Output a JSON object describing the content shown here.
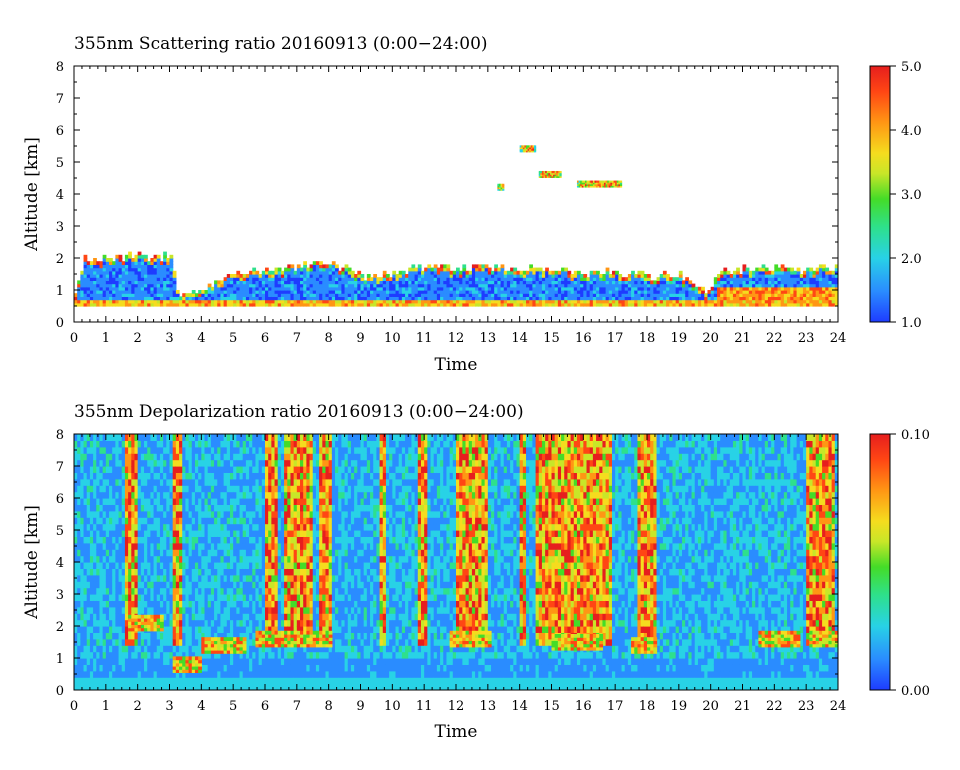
{
  "chart_data": [
    {
      "type": "heatmap",
      "title": "355nm Scattering ratio  20160913 (0:00−24:00)",
      "xlabel": "Time",
      "ylabel": "Altitude [km]",
      "xlim": [
        0,
        24
      ],
      "ylim": [
        0,
        8
      ],
      "xticks": [
        "0",
        "1",
        "2",
        "3",
        "4",
        "5",
        "6",
        "7",
        "8",
        "9",
        "10",
        "11",
        "12",
        "13",
        "14",
        "15",
        "16",
        "17",
        "18",
        "19",
        "20",
        "21",
        "22",
        "23",
        "24"
      ],
      "yticks": [
        "0",
        "1",
        "2",
        "3",
        "4",
        "5",
        "6",
        "7",
        "8"
      ],
      "colorbar": {
        "min": 1.0,
        "max": 5.0,
        "labels": [
          "1.0",
          "2.0",
          "3.0",
          "4.0",
          "5.0"
        ]
      },
      "colormap": [
        "#1e3cff",
        "#2a8cff",
        "#28d2e6",
        "#2ee08c",
        "#44dc28",
        "#c8e628",
        "#f5dc1e",
        "#ff9614",
        "#ff4614",
        "#e61e1e"
      ],
      "boundary_layer_top_km": [
        [
          0.0,
          0.8
        ],
        [
          0.3,
          1.9
        ],
        [
          0.6,
          1.9
        ],
        [
          1.5,
          2.0
        ],
        [
          3.0,
          2.0
        ],
        [
          3.2,
          0.9
        ],
        [
          4.0,
          0.9
        ],
        [
          4.5,
          1.3
        ],
        [
          5.0,
          1.5
        ],
        [
          6.0,
          1.6
        ],
        [
          7.0,
          1.7
        ],
        [
          8.0,
          1.8
        ],
        [
          8.3,
          1.7
        ],
        [
          9.0,
          1.4
        ],
        [
          10.0,
          1.5
        ],
        [
          11.0,
          1.7
        ],
        [
          12.0,
          1.6
        ],
        [
          13.0,
          1.7
        ],
        [
          14.0,
          1.6
        ],
        [
          15.0,
          1.6
        ],
        [
          16.0,
          1.5
        ],
        [
          17.0,
          1.5
        ],
        [
          18.0,
          1.4
        ],
        [
          19.0,
          1.4
        ],
        [
          19.8,
          0.9
        ],
        [
          20.2,
          1.5
        ],
        [
          21.0,
          1.6
        ],
        [
          22.0,
          1.7
        ],
        [
          23.0,
          1.6
        ],
        [
          24.0,
          1.7
        ]
      ],
      "clouds_km": [
        {
          "time_start": 14.0,
          "time_end": 14.5,
          "altitude": 5.4
        },
        {
          "time_start": 14.6,
          "time_end": 15.3,
          "altitude": 4.6
        },
        {
          "time_start": 15.8,
          "time_end": 17.2,
          "altitude": 4.3
        },
        {
          "time_start": 13.3,
          "time_end": 13.5,
          "altitude": 4.2
        }
      ]
    },
    {
      "type": "heatmap",
      "title": "355nm Depolarization ratio  20160913 (0:00−24:00)",
      "xlabel": "Time",
      "ylabel": "Altitude [km]",
      "xlim": [
        0,
        24
      ],
      "ylim": [
        0,
        8
      ],
      "xticks": [
        "0",
        "1",
        "2",
        "3",
        "4",
        "5",
        "6",
        "7",
        "8",
        "9",
        "10",
        "11",
        "12",
        "13",
        "14",
        "15",
        "16",
        "17",
        "18",
        "19",
        "20",
        "21",
        "22",
        "23",
        "24"
      ],
      "yticks": [
        "0",
        "1",
        "2",
        "3",
        "4",
        "5",
        "6",
        "7",
        "8"
      ],
      "colorbar": {
        "min": 0.0,
        "max": 0.1,
        "labels": [
          "0.00",
          "0.10"
        ]
      },
      "colormap": [
        "#1e3cff",
        "#2a8cff",
        "#28d2e6",
        "#2ee08c",
        "#44dc28",
        "#c8e628",
        "#f5dc1e",
        "#ff9614",
        "#ff4614",
        "#e61e1e"
      ],
      "high_depol_columns_hours": [
        [
          1.6,
          2.0
        ],
        [
          3.1,
          3.4
        ],
        [
          5.9,
          6.3
        ],
        [
          6.5,
          7.4
        ],
        [
          7.6,
          8.0
        ],
        [
          9.5,
          9.7
        ],
        [
          10.7,
          11.0
        ],
        [
          11.9,
          12.9
        ],
        [
          13.9,
          14.1
        ],
        [
          14.4,
          16.8
        ],
        [
          17.6,
          18.2
        ],
        [
          23.0,
          23.9
        ]
      ],
      "aerosol_layers_km": [
        {
          "time_start": 1.7,
          "time_end": 2.8,
          "altitude": 2.1
        },
        {
          "time_start": 3.1,
          "time_end": 4.0,
          "altitude": 0.8
        },
        {
          "time_start": 4.0,
          "time_end": 5.3,
          "altitude": 1.4
        },
        {
          "time_start": 5.7,
          "time_end": 8.0,
          "altitude": 1.6
        },
        {
          "time_start": 11.8,
          "time_end": 13.0,
          "altitude": 1.6
        },
        {
          "time_start": 15.0,
          "time_end": 16.6,
          "altitude": 1.5
        },
        {
          "time_start": 17.5,
          "time_end": 18.3,
          "altitude": 1.4
        },
        {
          "time_start": 21.5,
          "time_end": 22.8,
          "altitude": 1.6
        },
        {
          "time_start": 23.1,
          "time_end": 24.0,
          "altitude": 1.6
        }
      ]
    }
  ]
}
